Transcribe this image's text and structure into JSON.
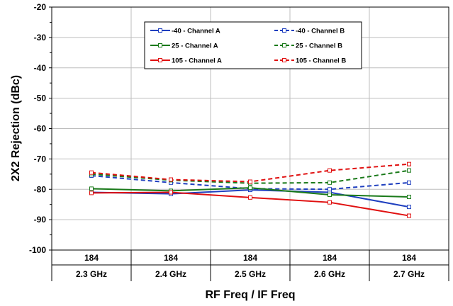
{
  "chart_data": {
    "type": "line",
    "xlabel": "RF Freq / IF Freq",
    "ylabel": "2X2 Rejection (dBc)",
    "ylim": [
      -100,
      -20
    ],
    "yticks": [
      "-20",
      "-30",
      "-40",
      "-50",
      "-60",
      "-70",
      "-80",
      "-90",
      "-100"
    ],
    "categories_row1": [
      "184",
      "184",
      "184",
      "184",
      "184"
    ],
    "categories_row2": [
      "2.3 GHz",
      "2.4 GHz",
      "2.5 GHz",
      "2.6 GHz",
      "2.7 GHz"
    ],
    "grid": true,
    "legend_position": "top-center",
    "series": [
      {
        "name": "-40 - Channel A",
        "color": "#1f3fbf",
        "dash": "solid",
        "values": [
          -81.0,
          -81.5,
          -80.2,
          -81.0,
          -85.8
        ]
      },
      {
        "name": "-40 - Channel B",
        "color": "#1f3fbf",
        "dash": "dashed",
        "values": [
          -75.5,
          -77.8,
          -79.8,
          -80.0,
          -77.8
        ]
      },
      {
        "name": "25 - Channel A",
        "color": "#1a7a1a",
        "dash": "solid",
        "values": [
          -79.8,
          -80.5,
          -79.5,
          -81.8,
          -82.5
        ]
      },
      {
        "name": "25 - Channel B",
        "color": "#1a7a1a",
        "dash": "dashed",
        "values": [
          -75.0,
          -77.0,
          -78.0,
          -77.8,
          -73.8
        ]
      },
      {
        "name": "105 - Channel A",
        "color": "#e01010",
        "dash": "solid",
        "values": [
          -81.2,
          -81.0,
          -82.7,
          -84.3,
          -88.7
        ]
      },
      {
        "name": "105 - Channel B",
        "color": "#e01010",
        "dash": "dashed",
        "values": [
          -74.5,
          -76.8,
          -77.5,
          -73.8,
          -71.7
        ]
      }
    ]
  }
}
